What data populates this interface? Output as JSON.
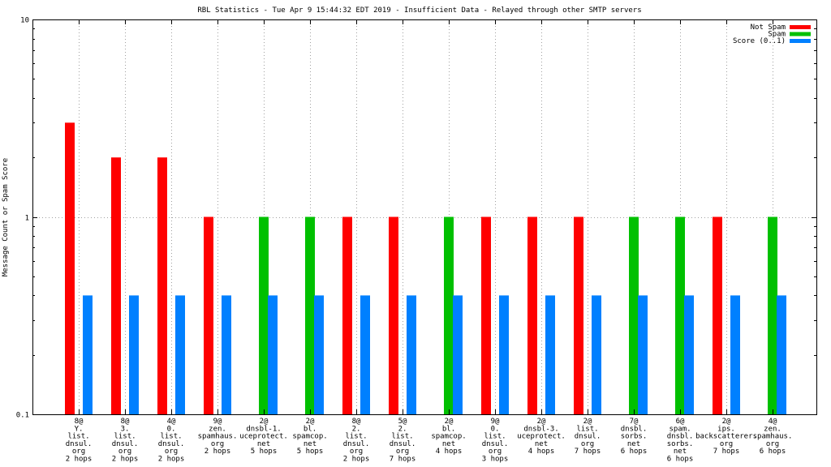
{
  "chart_data": {
    "type": "bar",
    "title": "RBL Statistics - Tue Apr  9 15:44:32 EDT 2019 - Insufficient Data - Relayed through other SMTP servers",
    "ylabel": "Message Count or Spam Score",
    "xlabel": "",
    "yscale": "log",
    "ylim": [
      0.1,
      10
    ],
    "yticks": [
      "0.1",
      "1",
      "10"
    ],
    "grid": true,
    "legend_position": "top-right",
    "categories": [
      [
        "8@",
        "Y.",
        "list.",
        "dnsul.",
        "org",
        "2 hops"
      ],
      [
        "8@",
        "3.",
        "list.",
        "dnsul.",
        "org",
        "2 hops"
      ],
      [
        "4@",
        "0.",
        "list.",
        "dnsul.",
        "org",
        "2 hops"
      ],
      [
        "9@",
        "zen.",
        "spamhaus.",
        "org",
        "2 hops"
      ],
      [
        "2@",
        "dnsbl-1.",
        "uceprotect.",
        "net",
        "5 hops"
      ],
      [
        "2@",
        "bl.",
        "spamcop.",
        "net",
        "5 hops"
      ],
      [
        "8@",
        "2.",
        "list.",
        "dnsul.",
        "org",
        "2 hops"
      ],
      [
        "5@",
        "2.",
        "list.",
        "dnsul.",
        "org",
        "7 hops"
      ],
      [
        "2@",
        "bl.",
        "spamcop.",
        "net",
        "4 hops"
      ],
      [
        "9@",
        "0.",
        "list.",
        "dnsul.",
        "org",
        "3 hops"
      ],
      [
        "2@",
        "dnsbl-3.",
        "uceprotect.",
        "net",
        "4 hops"
      ],
      [
        "2@",
        "list.",
        "dnsul.",
        "org",
        "7 hops"
      ],
      [
        "7@",
        "dnsbl.",
        "sorbs.",
        "net",
        "6 hops"
      ],
      [
        "6@",
        "spam.",
        "dnsbl.",
        "sorbs.",
        "net",
        "6 hops"
      ],
      [
        "2@",
        "ips.",
        "backscatterer.",
        "org",
        "7 hops"
      ],
      [
        "4@",
        "zen.",
        "spamhaus.",
        "org",
        "6 hops"
      ]
    ],
    "series": [
      {
        "name": "Not Spam",
        "color": "#ff0000",
        "values": [
          3,
          2,
          2,
          1,
          null,
          null,
          1,
          1,
          null,
          1,
          1,
          1,
          null,
          null,
          1,
          null
        ]
      },
      {
        "name": "Spam",
        "color": "#00c000",
        "values": [
          null,
          null,
          null,
          null,
          1,
          1,
          null,
          null,
          1,
          null,
          null,
          null,
          1,
          1,
          null,
          1
        ]
      },
      {
        "name": "Score (0..1)",
        "color": "#0080ff",
        "values": [
          0.4,
          0.4,
          0.4,
          0.4,
          0.4,
          0.4,
          0.4,
          0.4,
          0.4,
          0.4,
          0.4,
          0.4,
          0.4,
          0.4,
          0.4,
          0.4
        ]
      }
    ]
  }
}
